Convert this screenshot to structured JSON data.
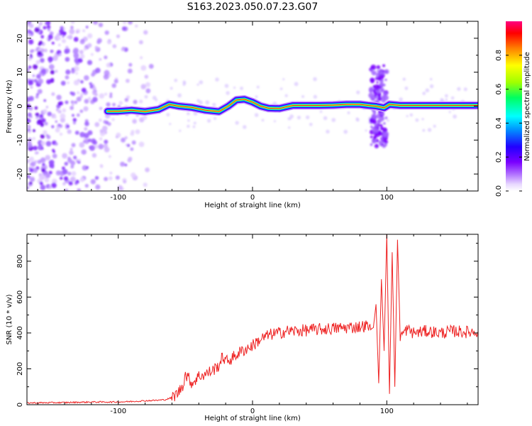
{
  "title": "S163.2023.050.07.23.G07",
  "chart_data": [
    {
      "type": "heatmap",
      "xlabel": "Height of straight line (km)",
      "ylabel": "Frequency (Hz)",
      "xlim": [
        -168,
        168
      ],
      "ylim": [
        -25,
        25
      ],
      "xticks": [
        -100,
        0,
        100
      ],
      "yticks": [
        -20,
        -10,
        0,
        10,
        20
      ],
      "colorbar": {
        "label": "Normalized spectral amplitude",
        "range": [
          0.0,
          1.0
        ],
        "ticks": [
          0.0,
          0.2,
          0.4,
          0.6,
          0.8
        ],
        "colors": [
          "#ffffff",
          "#e8d8ff",
          "#b070ff",
          "#7a00ff",
          "#2200ff",
          "#0090ff",
          "#00ffff",
          "#00ff60",
          "#a0ff00",
          "#ffff00",
          "#ff8000",
          "#ff0000",
          "#ff0080"
        ]
      },
      "ridge": {
        "description_free": true,
        "x": [
          -108,
          -100,
          -90,
          -80,
          -70,
          -62,
          -55,
          -45,
          -35,
          -25,
          -18,
          -12,
          -6,
          0,
          6,
          12,
          20,
          30,
          40,
          50,
          60,
          70,
          80,
          86,
          92,
          98,
          102,
          110,
          120,
          130,
          140,
          150,
          160,
          168
        ],
        "y": [
          -1.5,
          -1.5,
          -1.2,
          -1.6,
          -1.0,
          0.5,
          0.0,
          -0.4,
          -1.2,
          -1.6,
          0.0,
          1.8,
          2.0,
          1.2,
          0.0,
          -0.6,
          -0.7,
          0.2,
          0.2,
          0.2,
          0.3,
          0.5,
          0.5,
          0.2,
          0.0,
          -0.5,
          0.5,
          0.2,
          0.2,
          0.2,
          0.2,
          0.2,
          0.2,
          0.2
        ]
      },
      "noise_region_x": [
        -168,
        -75
      ],
      "burst": {
        "x": [
          88,
          100
        ],
        "y": [
          -12,
          12
        ]
      }
    },
    {
      "type": "line",
      "xlabel": "Height of straight line (km)",
      "ylabel": "SNR (10 * v/v)",
      "xlim": [
        -168,
        168
      ],
      "ylim": [
        0,
        950
      ],
      "xticks": [
        -100,
        0,
        100
      ],
      "yticks": [
        0,
        200,
        400,
        600,
        800
      ],
      "color": "#ee2222",
      "x": [
        -168,
        -140,
        -120,
        -100,
        -90,
        -80,
        -70,
        -65,
        -60,
        -55,
        -52,
        -50,
        -45,
        -40,
        -35,
        -30,
        -25,
        -22,
        -20,
        -15,
        -10,
        -5,
        0,
        5,
        10,
        15,
        20,
        25,
        30,
        40,
        50,
        60,
        70,
        80,
        85,
        88,
        90,
        92,
        94,
        96,
        98,
        100,
        102,
        104,
        106,
        108,
        110,
        115,
        120,
        130,
        140,
        150,
        160,
        168
      ],
      "y": [
        10,
        12,
        15,
        15,
        18,
        22,
        25,
        28,
        40,
        70,
        110,
        170,
        120,
        160,
        170,
        190,
        220,
        270,
        240,
        260,
        290,
        310,
        330,
        360,
        380,
        395,
        400,
        410,
        410,
        415,
        420,
        425,
        430,
        435,
        440,
        420,
        430,
        560,
        120,
        700,
        300,
        950,
        60,
        850,
        100,
        920,
        380,
        420,
        400,
        410,
        400,
        410,
        405,
        410
      ]
    }
  ]
}
